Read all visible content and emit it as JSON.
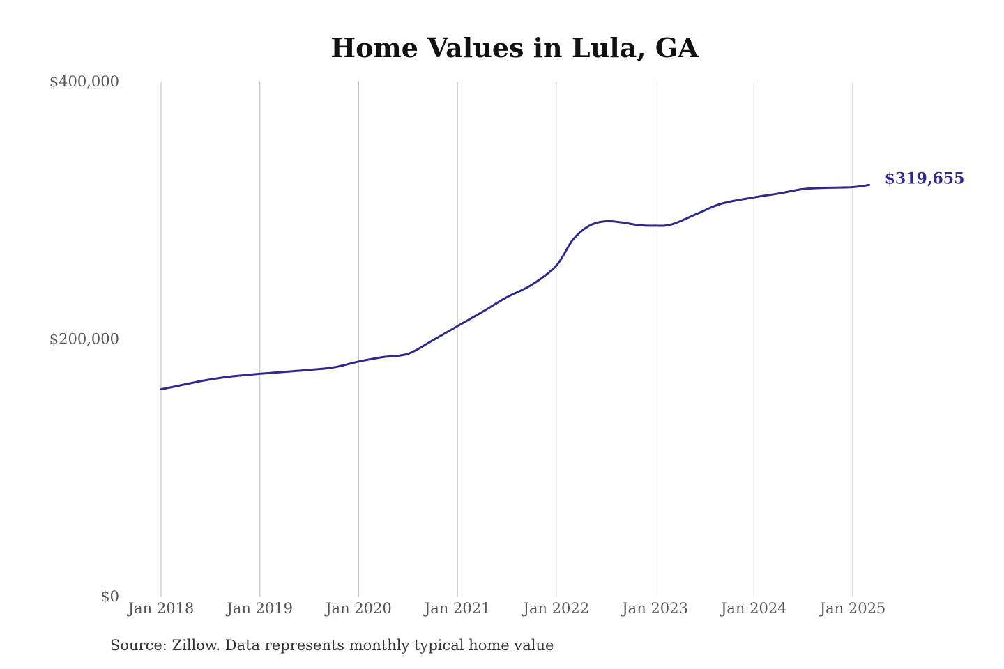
{
  "source_note": "Source: Zillow. Data represents monthly typical home value",
  "colors": {
    "line": "#2e2a86",
    "grid": "#bdbdbd",
    "title": "#111111",
    "tick": "#555555"
  },
  "chart_data": {
    "type": "line",
    "title": "Home Values in Lula, GA",
    "xlabel": "",
    "ylabel": "",
    "ylim": [
      0,
      400000
    ],
    "yticks": [
      0,
      200000,
      400000
    ],
    "ytick_labels": [
      "$0",
      "$200,000",
      "$400,000"
    ],
    "xtick_labels": [
      "Jan 2018",
      "Jan 2019",
      "Jan 2020",
      "Jan 2021",
      "Jan 2022",
      "Jan 2023",
      "Jan 2024",
      "Jan 2025"
    ],
    "xtick_values": [
      "2018-01",
      "2019-01",
      "2020-01",
      "2021-01",
      "2022-01",
      "2023-01",
      "2024-01",
      "2025-01"
    ],
    "grid": "vertical",
    "end_label": "$319,655",
    "series": [
      {
        "x": [
          "2018-01",
          "2018-03",
          "2018-06",
          "2018-09",
          "2019-01",
          "2019-04",
          "2019-07",
          "2019-10",
          "2020-01",
          "2020-04",
          "2020-07",
          "2020-10",
          "2021-01",
          "2021-04",
          "2021-07",
          "2021-10",
          "2022-01",
          "2022-03",
          "2022-05",
          "2022-07",
          "2022-09",
          "2022-11",
          "2023-01",
          "2023-03",
          "2023-06",
          "2023-09",
          "2024-01",
          "2024-04",
          "2024-07",
          "2024-10",
          "2025-01",
          "2025-03"
        ],
        "y": [
          161000,
          163500,
          167500,
          170500,
          173000,
          174500,
          176000,
          178000,
          182500,
          186000,
          188500,
          199000,
          210000,
          221000,
          232500,
          242000,
          257000,
          277000,
          288000,
          291500,
          290500,
          288500,
          288000,
          289000,
          297000,
          305000,
          310000,
          313000,
          316500,
          317500,
          318000,
          319655
        ]
      }
    ]
  }
}
